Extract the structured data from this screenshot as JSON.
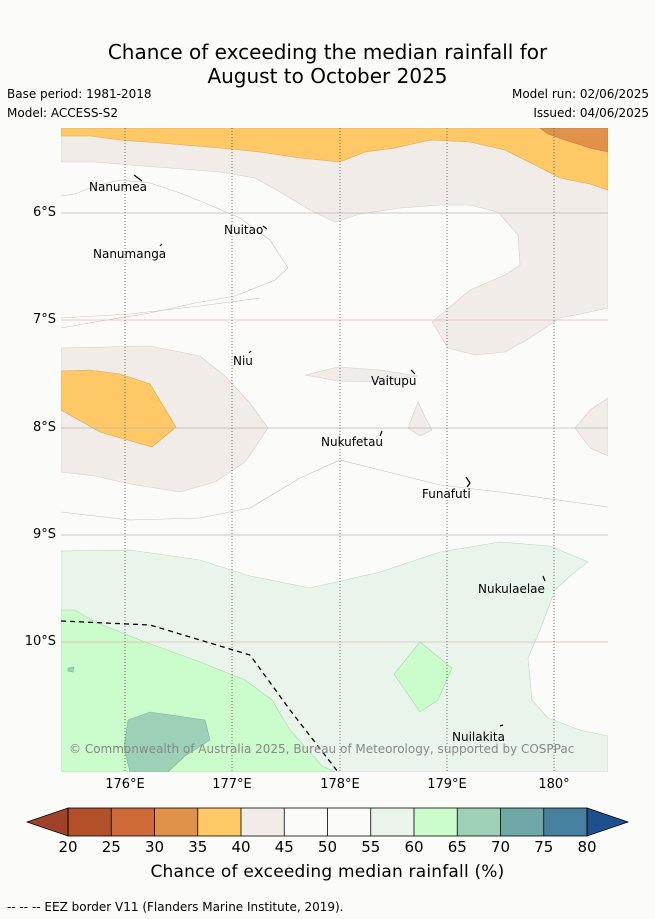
{
  "title": {
    "line1": "Chance of exceeding the median rainfall for",
    "line2": "August to October 2025"
  },
  "meta": {
    "base_period": "Base period: 1981-2018",
    "model": "Model: ACCESS-S2",
    "model_run": "Model run: 02/06/2025",
    "issued": "Issued: 04/06/2025"
  },
  "axes": {
    "x_ticks": [
      "176°E",
      "177°E",
      "178°E",
      "179°E",
      "180°"
    ],
    "y_ticks": [
      "6°S",
      "7°S",
      "8°S",
      "9°S",
      "10°S"
    ]
  },
  "places": [
    {
      "name": "Nanumea"
    },
    {
      "name": "Nuitao"
    },
    {
      "name": "Nanumanga"
    },
    {
      "name": "Niu"
    },
    {
      "name": "Vaitupu"
    },
    {
      "name": "Nukufetau"
    },
    {
      "name": "Funafuti"
    },
    {
      "name": "Nukulaelae"
    },
    {
      "name": "Nuilakita"
    }
  ],
  "copyright": "© Commonwealth of Australia 2025, Bureau of Meteorology, supported by COSPPac",
  "colorbar": {
    "ticks": [
      "20",
      "25",
      "30",
      "35",
      "40",
      "45",
      "50",
      "55",
      "60",
      "65",
      "70",
      "75",
      "80"
    ],
    "colors": [
      "#b2502a",
      "#cd6a38",
      "#e0924a",
      "#fdc865",
      "#f1ece7",
      "#fbfcfa",
      "#fbfcfa",
      "#e9f5ea",
      "#cbfccb",
      "#9dd1b7",
      "#6fa7a7",
      "#477f9f"
    ],
    "under_color": "#a0412a",
    "over_color": "#1e4f8e",
    "label": "Chance of exceeding median rainfall (%)"
  },
  "footer": "--  --  -- EEZ border V11 (Flanders Marine Institute, 2019)."
}
